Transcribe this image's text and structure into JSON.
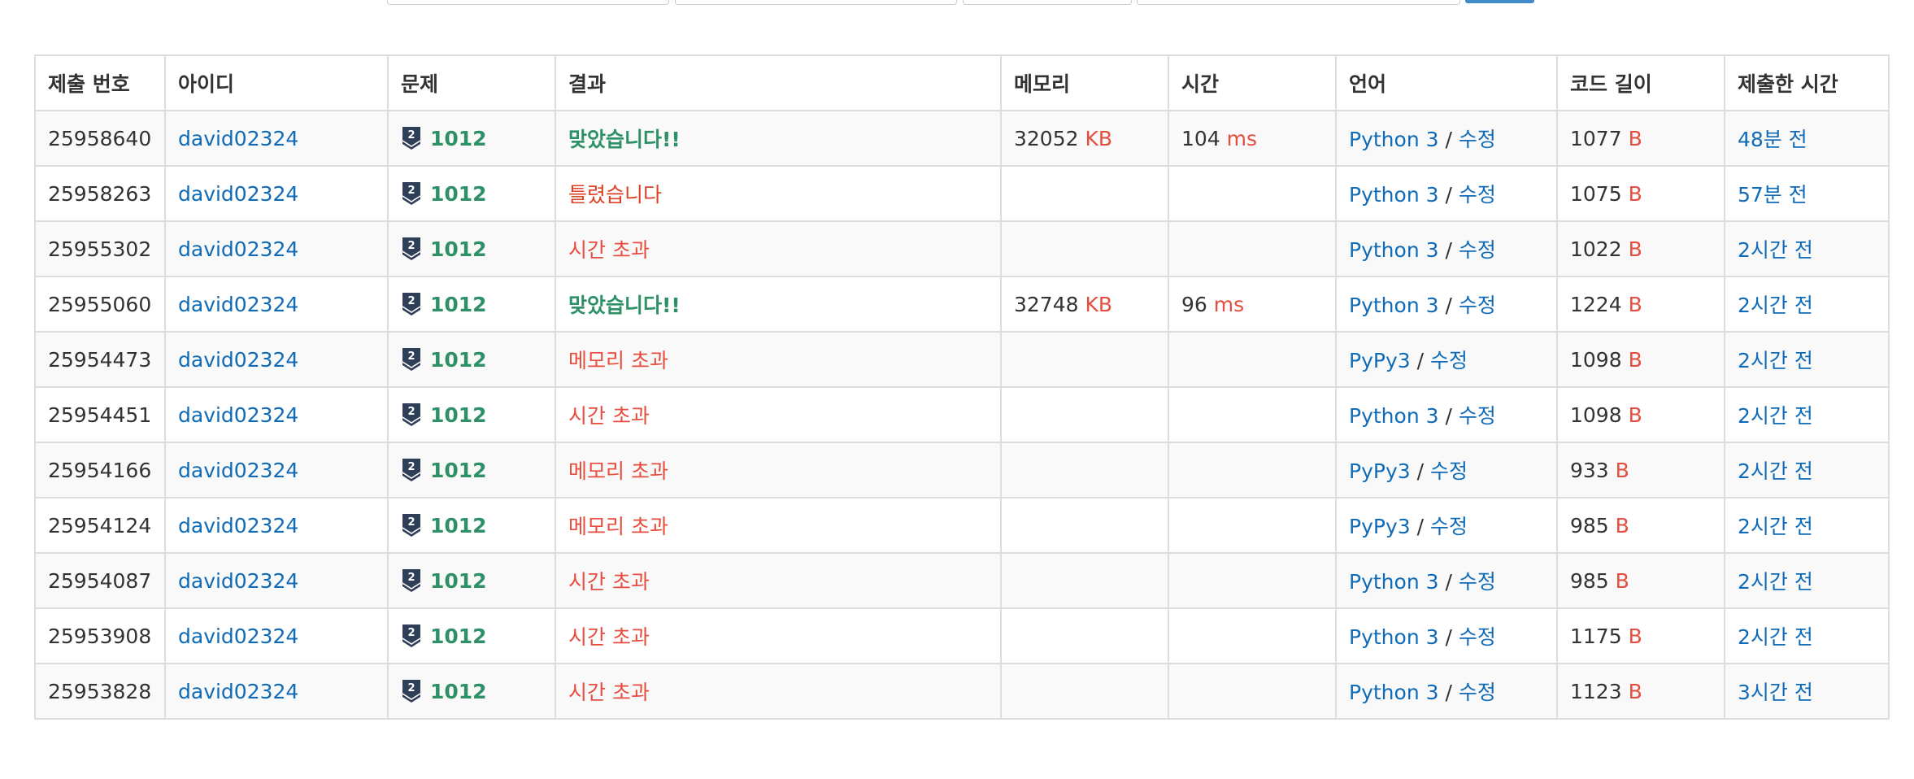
{
  "columns": [
    "제출 번호",
    "아이디",
    "문제",
    "결과",
    "메모리",
    "시간",
    "언어",
    "코드 길이",
    "제출한 시간"
  ],
  "units": {
    "memory": "KB",
    "time": "ms",
    "length": "B"
  },
  "colors": {
    "link": "#0f6bb8",
    "accepted": "#2d9066",
    "wrong": "#dd4124",
    "error": "#e74c3c",
    "tier_icon": "#2f3f57"
  },
  "rows": [
    {
      "id": "25958640",
      "user": "david02324",
      "problem": "1012",
      "tier_icon": "silver-2-tier-icon",
      "result": "맞았습니다!!",
      "result_type": "ac",
      "memory": "32052",
      "time": "104",
      "lang": "Python 3",
      "edit": "수정",
      "length": "1077",
      "submitted": "48분 전"
    },
    {
      "id": "25958263",
      "user": "david02324",
      "problem": "1012",
      "tier_icon": "silver-2-tier-icon",
      "result": "틀렸습니다",
      "result_type": "wa",
      "memory": "",
      "time": "",
      "lang": "Python 3",
      "edit": "수정",
      "length": "1075",
      "submitted": "57분 전"
    },
    {
      "id": "25955302",
      "user": "david02324",
      "problem": "1012",
      "tier_icon": "silver-2-tier-icon",
      "result": "시간 초과",
      "result_type": "tle",
      "memory": "",
      "time": "",
      "lang": "Python 3",
      "edit": "수정",
      "length": "1022",
      "submitted": "2시간 전"
    },
    {
      "id": "25955060",
      "user": "david02324",
      "problem": "1012",
      "tier_icon": "silver-2-tier-icon",
      "result": "맞았습니다!!",
      "result_type": "ac",
      "memory": "32748",
      "time": "96",
      "lang": "Python 3",
      "edit": "수정",
      "length": "1224",
      "submitted": "2시간 전"
    },
    {
      "id": "25954473",
      "user": "david02324",
      "problem": "1012",
      "tier_icon": "silver-2-tier-icon",
      "result": "메모리 초과",
      "result_type": "mle",
      "memory": "",
      "time": "",
      "lang": "PyPy3",
      "edit": "수정",
      "length": "1098",
      "submitted": "2시간 전"
    },
    {
      "id": "25954451",
      "user": "david02324",
      "problem": "1012",
      "tier_icon": "silver-2-tier-icon",
      "result": "시간 초과",
      "result_type": "tle",
      "memory": "",
      "time": "",
      "lang": "Python 3",
      "edit": "수정",
      "length": "1098",
      "submitted": "2시간 전"
    },
    {
      "id": "25954166",
      "user": "david02324",
      "problem": "1012",
      "tier_icon": "silver-2-tier-icon",
      "result": "메모리 초과",
      "result_type": "mle",
      "memory": "",
      "time": "",
      "lang": "PyPy3",
      "edit": "수정",
      "length": "933",
      "submitted": "2시간 전"
    },
    {
      "id": "25954124",
      "user": "david02324",
      "problem": "1012",
      "tier_icon": "silver-2-tier-icon",
      "result": "메모리 초과",
      "result_type": "mle",
      "memory": "",
      "time": "",
      "lang": "PyPy3",
      "edit": "수정",
      "length": "985",
      "submitted": "2시간 전"
    },
    {
      "id": "25954087",
      "user": "david02324",
      "problem": "1012",
      "tier_icon": "silver-2-tier-icon",
      "result": "시간 초과",
      "result_type": "tle",
      "memory": "",
      "time": "",
      "lang": "Python 3",
      "edit": "수정",
      "length": "985",
      "submitted": "2시간 전"
    },
    {
      "id": "25953908",
      "user": "david02324",
      "problem": "1012",
      "tier_icon": "silver-2-tier-icon",
      "result": "시간 초과",
      "result_type": "tle",
      "memory": "",
      "time": "",
      "lang": "Python 3",
      "edit": "수정",
      "length": "1175",
      "submitted": "2시간 전"
    },
    {
      "id": "25953828",
      "user": "david02324",
      "problem": "1012",
      "tier_icon": "silver-2-tier-icon",
      "result": "시간 초과",
      "result_type": "tle",
      "memory": "",
      "time": "",
      "lang": "Python 3",
      "edit": "수정",
      "length": "1123",
      "submitted": "3시간 전"
    }
  ]
}
